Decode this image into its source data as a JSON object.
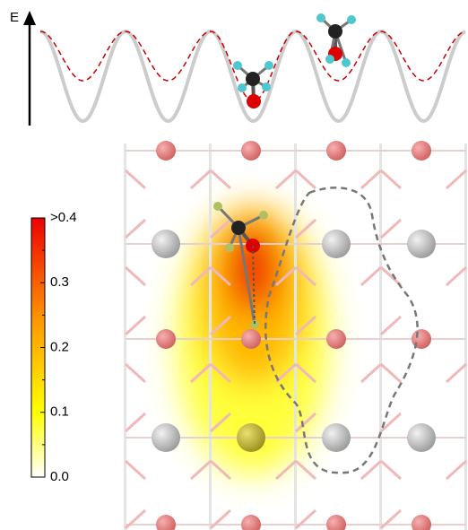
{
  "energy_axis": {
    "label": "E"
  },
  "colorbar": {
    "ticks": [
      {
        "value": 0.4,
        "label": ">0.4"
      },
      0.3,
      0.2,
      0.1,
      {
        "value": 0,
        "label": "0.0"
      }
    ]
  }
}
